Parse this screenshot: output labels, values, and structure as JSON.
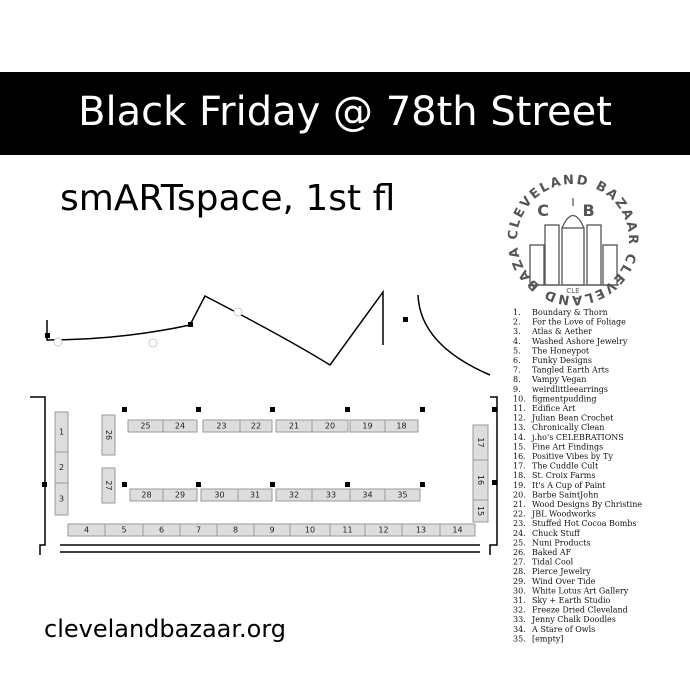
{
  "header": {
    "title": "Black Friday @ 78th Street"
  },
  "subtitle": "smARTspace, 1st fl",
  "logo": {
    "ring": "CLEVELAND BAZAAR CLEVELAND BAZAAR",
    "initials": "C B",
    "city": "CLE"
  },
  "footer": {
    "url": "clevelandbazaar.org"
  },
  "booths": [
    "1",
    "2",
    "3",
    "4",
    "5",
    "6",
    "7",
    "8",
    "9",
    "10",
    "11",
    "12",
    "13",
    "14",
    "15",
    "16",
    "17",
    "18",
    "19",
    "20",
    "21",
    "22",
    "23",
    "24",
    "25",
    "26",
    "27",
    "28",
    "29",
    "30",
    "31",
    "32",
    "33",
    "34",
    "35"
  ],
  "vendors": [
    {
      "number": "1.",
      "name": "Boundary & Thorn"
    },
    {
      "number": "2.",
      "name": "For the Love of Foliage"
    },
    {
      "number": "3.",
      "name": "Atlas & Aether"
    },
    {
      "number": "4.",
      "name": "Washed Ashore Jewelry"
    },
    {
      "number": "5.",
      "name": "The Honeypot"
    },
    {
      "number": "6.",
      "name": "Funky Designs"
    },
    {
      "number": "7.",
      "name": "Tangled Earth Arts"
    },
    {
      "number": "8.",
      "name": "Vampy Vegan"
    },
    {
      "number": "9.",
      "name": "weirdlittleearrings"
    },
    {
      "number": "10.",
      "name": "figmentpudding"
    },
    {
      "number": "11.",
      "name": "Edifice Art"
    },
    {
      "number": "12.",
      "name": "Julian Bean Crochet"
    },
    {
      "number": "13.",
      "name": "Chronically Clean"
    },
    {
      "number": "14.",
      "name": "j.ho's CELEBRATIONS"
    },
    {
      "number": "15.",
      "name": "Fine Art Findings"
    },
    {
      "number": "16.",
      "name": "Positive Vibes by Ty"
    },
    {
      "number": "17.",
      "name": "The Cuddle Cult"
    },
    {
      "number": "18.",
      "name": "St. Croix Farms"
    },
    {
      "number": "19.",
      "name": "It's A Cup of Paint"
    },
    {
      "number": "20.",
      "name": "Barbe SaintJohn"
    },
    {
      "number": "21.",
      "name": "Wood Designs By Christine"
    },
    {
      "number": "22.",
      "name": "JBL Woodworks"
    },
    {
      "number": "23.",
      "name": "Stuffed Hot Cocoa Bombs"
    },
    {
      "number": "24.",
      "name": "Chuck Stuff"
    },
    {
      "number": "25.",
      "name": "Nuni Products"
    },
    {
      "number": "26.",
      "name": "Baked AF"
    },
    {
      "number": "27.",
      "name": "Tidal Cool"
    },
    {
      "number": "28.",
      "name": "Pierce Jewelry"
    },
    {
      "number": "29.",
      "name": "Wind Over Tide"
    },
    {
      "number": "30.",
      "name": "White Lotus Art Gallery"
    },
    {
      "number": "31.",
      "name": "Sky + Earth Studio"
    },
    {
      "number": "32.",
      "name": "Freeze Dried Cleveland"
    },
    {
      "number": "33.",
      "name": "Jenny Chalk Doodles"
    },
    {
      "number": "34.",
      "name": "A Stare of Owls"
    },
    {
      "number": "35.",
      "name": "[empty]"
    }
  ]
}
